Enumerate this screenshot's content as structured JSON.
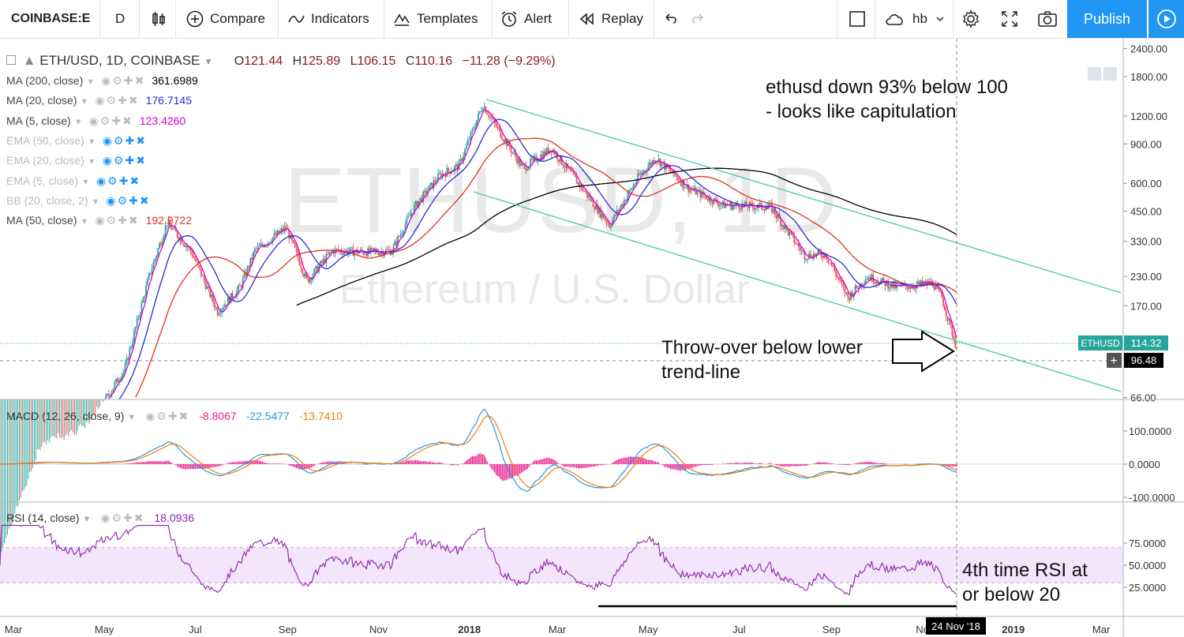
{
  "toolbar": {
    "symbol": "COINBASE:E",
    "interval": "D",
    "compare": "Compare",
    "indicators": "Indicators",
    "templates": "Templates",
    "alert": "Alert",
    "replay": "Replay",
    "user": "hb",
    "publish": "Publish"
  },
  "header": {
    "title": "ETH/USD, 1D, COINBASE",
    "o_label": "O",
    "o": "121.44",
    "h_label": "H",
    "h": "125.89",
    "l_label": "L",
    "l": "106.15",
    "c_label": "C",
    "c": "110.16",
    "change": "−11.28 (−9.29%)"
  },
  "indicators_legend": [
    {
      "label": "MA (200, close)",
      "value": "361.6989",
      "color": "#000000",
      "muted": false
    },
    {
      "label": "MA (20, close)",
      "value": "176.7145",
      "color": "#2b2bd6",
      "muted": false
    },
    {
      "label": "MA (5, close)",
      "value": "123.4260",
      "color": "#d600d6",
      "muted": false
    },
    {
      "label": "EMA (50, close)",
      "value": "",
      "color": "#bbbbbb",
      "muted": true
    },
    {
      "label": "EMA (20, close)",
      "value": "",
      "color": "#bbbbbb",
      "muted": true
    },
    {
      "label": "EMA (5, close)",
      "value": "",
      "color": "#bbbbbb",
      "muted": true
    },
    {
      "label": "BB (20, close, 2)",
      "value": "",
      "color": "#bbbbbb",
      "muted": true
    },
    {
      "label": "MA (50, close)",
      "value": "192.9722",
      "color": "#e0321e",
      "muted": false
    }
  ],
  "watermark": {
    "symbol": "ETHUSD, 1D",
    "name": "Ethereum / U.S. Dollar"
  },
  "annotations": {
    "top_note_1": "ethusd down 93% below 100",
    "top_note_2": "- looks like capitulation",
    "throw_1": "Throw-over below lower",
    "throw_2": "trend-line",
    "rsi_1": "4th time RSI at",
    "rsi_2": "or below 20"
  },
  "price_tags": {
    "symbol": "ETHUSD",
    "last": "114.32",
    "cursor": "96.48"
  },
  "macd_legend": {
    "label": "MACD (12, 26, close, 9)",
    "hist": "-8.8067",
    "macd": "-22.5477",
    "signal": "-13.7410"
  },
  "rsi_legend": {
    "label": "RSI (14, close)",
    "value": "18.0936"
  },
  "x_axis": {
    "cursor_date": "24 Nov '18"
  },
  "colors": {
    "accent": "#2196f3",
    "ma200": "#000000",
    "ma20": "#2b2bd6",
    "ma5": "#d600d6",
    "ma50": "#e0321e",
    "up": "#26a69a",
    "down": "#ef5350",
    "trend": "#4fc3b0",
    "macd": "#2196f3",
    "signal": "#f57c00",
    "hist": "#e91e8c",
    "rsi": "#8e24aa",
    "rsi_band": "#f3e5fb"
  },
  "chart_data": [
    {
      "type": "line",
      "title": "ETH/USD, 1D, COINBASE",
      "scale": "log",
      "y_ticks": [
        "2400.00",
        "1800.00",
        "1200.00",
        "900.00",
        "600.00",
        "450.00",
        "330.00",
        "230.00",
        "170.00",
        "96.48",
        "66.00"
      ],
      "x_ticks": [
        "Mar",
        "May",
        "Jul",
        "Sep",
        "Nov",
        "2018",
        "Mar",
        "May",
        "Jul",
        "Sep",
        "No",
        "2019",
        "Mar"
      ],
      "series": [
        {
          "name": "ETH/USD",
          "x": [
            "2017-03",
            "2017-05",
            "2017-06",
            "2017-07",
            "2017-09",
            "2017-11",
            "2017-12",
            "2018-01",
            "2018-02",
            "2018-04",
            "2018-05",
            "2018-07",
            "2018-09",
            "2018-10",
            "2018-11",
            "2018-11-24"
          ],
          "values": [
            45,
            110,
            390,
            210,
            380,
            300,
            650,
            1350,
            900,
            400,
            750,
            470,
            220,
            205,
            200,
            110.16
          ]
        },
        {
          "name": "MA (200, close)",
          "x": [
            "2017-06",
            "2017-09",
            "2018-01",
            "2018-05",
            "2018-08",
            "2018-11-24"
          ],
          "values": [
            66,
            140,
            500,
            700,
            600,
            361.6989
          ]
        },
        {
          "name": "MA (20, close)",
          "x": [
            "2017-09",
            "2018-01",
            "2018-05",
            "2018-09",
            "2018-11-24"
          ],
          "values": [
            320,
            1100,
            700,
            230,
            176.7145
          ]
        },
        {
          "name": "MA (5, close)",
          "x": [
            "2018-10",
            "2018-11-24"
          ],
          "values": [
            205,
            123.426
          ]
        },
        {
          "name": "MA (50, close)",
          "x": [
            "2017-09",
            "2018-01",
            "2018-05",
            "2018-09",
            "2018-11-24"
          ],
          "values": [
            300,
            900,
            650,
            260,
            192.9722
          ]
        }
      ]
    },
    {
      "type": "line",
      "title": "MACD (12, 26, close, 9)",
      "y_ticks": [
        "100.0000",
        "0.0000",
        "-100.0000"
      ],
      "series": [
        {
          "name": "MACD",
          "x": [
            "2017-06",
            "2017-11",
            "2018-01",
            "2018-04",
            "2018-05",
            "2018-11-24"
          ],
          "values": [
            10,
            5,
            170,
            -90,
            70,
            -22.5477
          ]
        },
        {
          "name": "Signal",
          "x": [
            "2017-06",
            "2017-11",
            "2018-01",
            "2018-04",
            "2018-05",
            "2018-11-24"
          ],
          "values": [
            8,
            4,
            150,
            -80,
            60,
            -13.741
          ]
        }
      ]
    },
    {
      "type": "line",
      "title": "RSI (14, close)",
      "y_ticks": [
        "75.0000",
        "50.0000",
        "25.0000"
      ],
      "series": [
        {
          "name": "RSI",
          "x": [
            "2017-03",
            "2017-06",
            "2017-09",
            "2017-12",
            "2018-04",
            "2018-05",
            "2018-08",
            "2018-11",
            "2018-11-24"
          ],
          "values": [
            80,
            85,
            30,
            85,
            18,
            75,
            18,
            60,
            18.0936
          ]
        }
      ]
    }
  ]
}
